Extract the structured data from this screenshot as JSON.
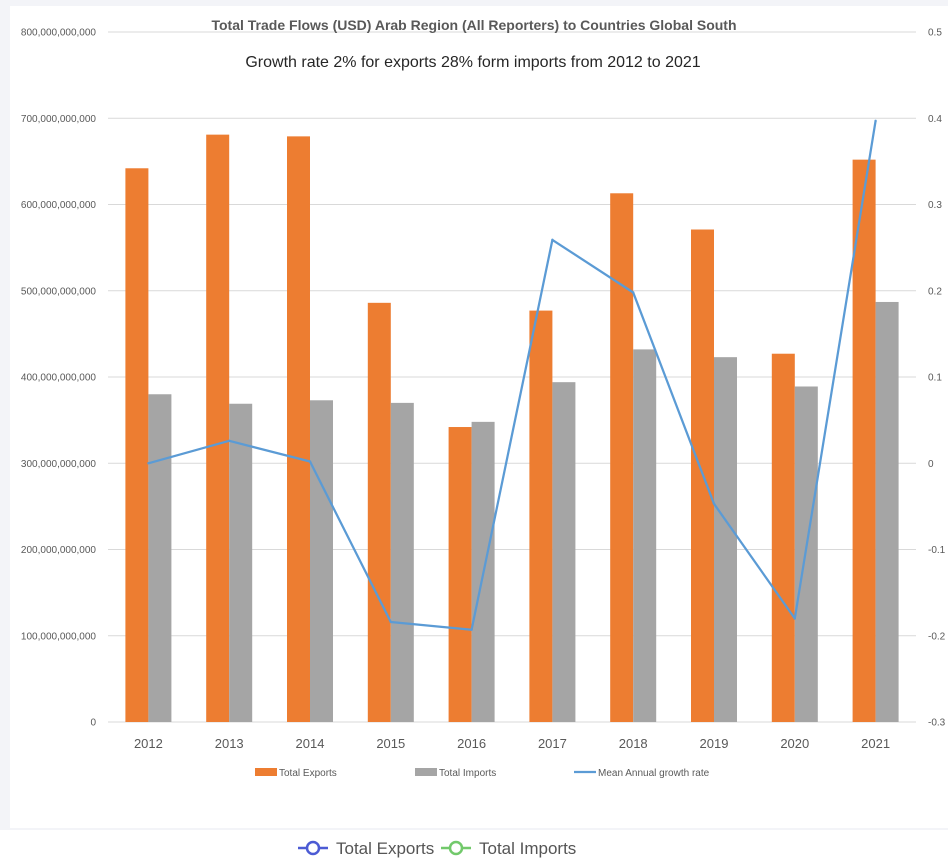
{
  "chart_data": {
    "type": "bar",
    "title": "Total Trade Flows (USD) Arab Region (All Reporters) to Countries Global South",
    "subtitle": "Growth rate 2% for exports 28% form imports from 2012 to 2021",
    "categories": [
      "2012",
      "2013",
      "2014",
      "2015",
      "2016",
      "2017",
      "2018",
      "2019",
      "2020",
      "2021"
    ],
    "series": [
      {
        "name": "Total Exports",
        "type": "bar",
        "axis": "left",
        "color": "#ed7d31",
        "values": [
          642000000000,
          681000000000,
          679000000000,
          486000000000,
          342000000000,
          477000000000,
          613000000000,
          571000000000,
          427000000000,
          652000000000
        ]
      },
      {
        "name": "Total Imports",
        "type": "bar",
        "axis": "left",
        "color": "#a5a5a5",
        "values": [
          380000000000,
          369000000000,
          373000000000,
          370000000000,
          348000000000,
          394000000000,
          432000000000,
          423000000000,
          389000000000,
          487000000000
        ]
      },
      {
        "name": "Mean Annual growth rate",
        "type": "line",
        "axis": "right",
        "color": "#5b9bd5",
        "values": [
          0.0,
          0.026,
          0.002,
          -0.184,
          -0.193,
          0.259,
          0.198,
          -0.047,
          -0.18,
          0.397
        ]
      }
    ],
    "left_axis": {
      "min": 0,
      "max": 800000000000,
      "step": 100000000000,
      "tick_labels": [
        "0",
        "100,000,000,000",
        "200,000,000,000",
        "300,000,000,000",
        "400,000,000,000",
        "500,000,000,000",
        "600,000,000,000",
        "700,000,000,000",
        "800,000,000,000"
      ]
    },
    "right_axis": {
      "min": -0.3,
      "max": 0.5,
      "step": 0.1,
      "tick_labels": [
        "-0.3",
        "-0.2",
        "-0.1",
        "0",
        "0.1",
        "0.2",
        "0.3",
        "0.4",
        "0.5"
      ]
    },
    "grid": true,
    "legend_position": "bottom"
  },
  "bottom_legend": {
    "items": [
      {
        "label": "Total Exports",
        "color": "#4c5bd4"
      },
      {
        "label": "Total Imports",
        "color": "#72c96b"
      }
    ]
  },
  "colors": {
    "grid": "#d9d9d9",
    "axis_text": "#595959",
    "title_text": "#595959"
  }
}
